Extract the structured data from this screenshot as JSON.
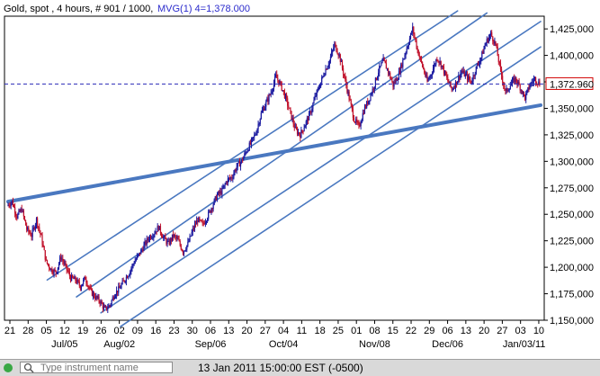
{
  "header": {
    "instrument": "Gold, spot , 4 hours, # 901 / 1000,",
    "indicator": "MVG(1) 4=1,378.000"
  },
  "last_price_label": "1,372.960",
  "chart_data": {
    "type": "candlestick",
    "instrument": "Gold, spot",
    "timeframe": "4 hours",
    "bars": "901 / 1000",
    "indicator": "MVG(1) 4=1,378.000",
    "last_price": 1372.96,
    "ylim": [
      1150,
      1437
    ],
    "y_ticks": [
      1150,
      1175,
      1200,
      1225,
      1250,
      1275,
      1300,
      1325,
      1350,
      1375,
      1400,
      1425
    ],
    "y_tick_labels": [
      "1,150,000",
      "1,175,000",
      "1,200,000",
      "1,225,000",
      "1,250,000",
      "1,275,000",
      "1,300,000",
      "1,325,000",
      "1,350,000",
      "1,375,000",
      "1,400,000",
      "1,425,000"
    ],
    "x_tick_labels": [
      "21",
      "28",
      "05",
      "12",
      "19",
      "26",
      "02",
      "09",
      "16",
      "23",
      "30",
      "06",
      "13",
      "20",
      "27",
      "04",
      "11",
      "18",
      "25",
      "01",
      "08",
      "15",
      "22",
      "29",
      "06",
      "13",
      "20",
      "27",
      "03",
      "10"
    ],
    "x_month_labels": [
      "Jul/05",
      "Aug/02",
      "Sep/06",
      "Oct/04",
      "Nov/08",
      "Dec/06",
      "Jan/03/11"
    ],
    "price_path": [
      [
        0,
        1258
      ],
      [
        1,
        1262
      ],
      [
        2,
        1248
      ],
      [
        3,
        1255
      ],
      [
        4,
        1236
      ],
      [
        5,
        1230
      ],
      [
        6,
        1245
      ],
      [
        7,
        1228
      ],
      [
        8,
        1205
      ],
      [
        9,
        1198
      ],
      [
        10,
        1195
      ],
      [
        11,
        1210
      ],
      [
        12,
        1200
      ],
      [
        13,
        1190
      ],
      [
        14,
        1188
      ],
      [
        15,
        1182
      ],
      [
        16,
        1190
      ],
      [
        17,
        1178
      ],
      [
        18,
        1172
      ],
      [
        19,
        1168
      ],
      [
        20,
        1160
      ],
      [
        21,
        1164
      ],
      [
        22,
        1175
      ],
      [
        23,
        1180
      ],
      [
        24,
        1188
      ],
      [
        25,
        1195
      ],
      [
        26,
        1205
      ],
      [
        27,
        1212
      ],
      [
        28,
        1220
      ],
      [
        29,
        1228
      ],
      [
        30,
        1232
      ],
      [
        31,
        1238
      ],
      [
        32,
        1228
      ],
      [
        33,
        1222
      ],
      [
        34,
        1230
      ],
      [
        35,
        1225
      ],
      [
        36,
        1215
      ],
      [
        37,
        1222
      ],
      [
        38,
        1235
      ],
      [
        39,
        1245
      ],
      [
        40,
        1240
      ],
      [
        41,
        1248
      ],
      [
        42,
        1258
      ],
      [
        43,
        1268
      ],
      [
        44,
        1272
      ],
      [
        45,
        1282
      ],
      [
        46,
        1285
      ],
      [
        47,
        1295
      ],
      [
        48,
        1300
      ],
      [
        49,
        1310
      ],
      [
        50,
        1318
      ],
      [
        51,
        1328
      ],
      [
        52,
        1345
      ],
      [
        53,
        1355
      ],
      [
        54,
        1365
      ],
      [
        55,
        1380
      ],
      [
        56,
        1372
      ],
      [
        57,
        1360
      ],
      [
        58,
        1345
      ],
      [
        59,
        1330
      ],
      [
        60,
        1325
      ],
      [
        61,
        1335
      ],
      [
        62,
        1345
      ],
      [
        63,
        1360
      ],
      [
        64,
        1372
      ],
      [
        65,
        1385
      ],
      [
        66,
        1395
      ],
      [
        67,
        1410
      ],
      [
        68,
        1400
      ],
      [
        69,
        1380
      ],
      [
        70,
        1360
      ],
      [
        71,
        1340
      ],
      [
        72,
        1332
      ],
      [
        73,
        1348
      ],
      [
        74,
        1358
      ],
      [
        75,
        1370
      ],
      [
        76,
        1385
      ],
      [
        77,
        1395
      ],
      [
        78,
        1385
      ],
      [
        79,
        1372
      ],
      [
        80,
        1380
      ],
      [
        81,
        1395
      ],
      [
        82,
        1410
      ],
      [
        83,
        1425
      ],
      [
        84,
        1405
      ],
      [
        85,
        1390
      ],
      [
        86,
        1375
      ],
      [
        87,
        1385
      ],
      [
        88,
        1398
      ],
      [
        89,
        1390
      ],
      [
        90,
        1378
      ],
      [
        91,
        1368
      ],
      [
        92,
        1375
      ],
      [
        93,
        1385
      ],
      [
        94,
        1380
      ],
      [
        95,
        1375
      ],
      [
        96,
        1388
      ],
      [
        97,
        1398
      ],
      [
        98,
        1412
      ],
      [
        99,
        1420
      ],
      [
        100,
        1410
      ],
      [
        101,
        1385
      ],
      [
        102,
        1365
      ],
      [
        103,
        1372
      ],
      [
        104,
        1378
      ],
      [
        105,
        1370
      ],
      [
        106,
        1360
      ],
      [
        107,
        1372
      ],
      [
        108,
        1378
      ],
      [
        109,
        1373
      ]
    ],
    "trend_lines": [
      {
        "x0": 0,
        "y0": 1262,
        "x1": 109,
        "y1": 1353,
        "thick": true
      },
      {
        "x0": 8,
        "y0": 1188,
        "x1": 92,
        "y1": 1442,
        "thick": false
      },
      {
        "x0": 14,
        "y0": 1172,
        "x1": 98,
        "y1": 1440,
        "thick": false
      },
      {
        "x0": 19,
        "y0": 1157,
        "x1": 109,
        "y1": 1432,
        "thick": false
      },
      {
        "x0": 23,
        "y0": 1144,
        "x1": 109,
        "y1": 1408,
        "thick": false
      }
    ]
  },
  "bottom_bar": {
    "search_placeholder": "Type instrument name",
    "timestamp": "13 Jan 2011 15:00:00  EST (-0500)"
  }
}
